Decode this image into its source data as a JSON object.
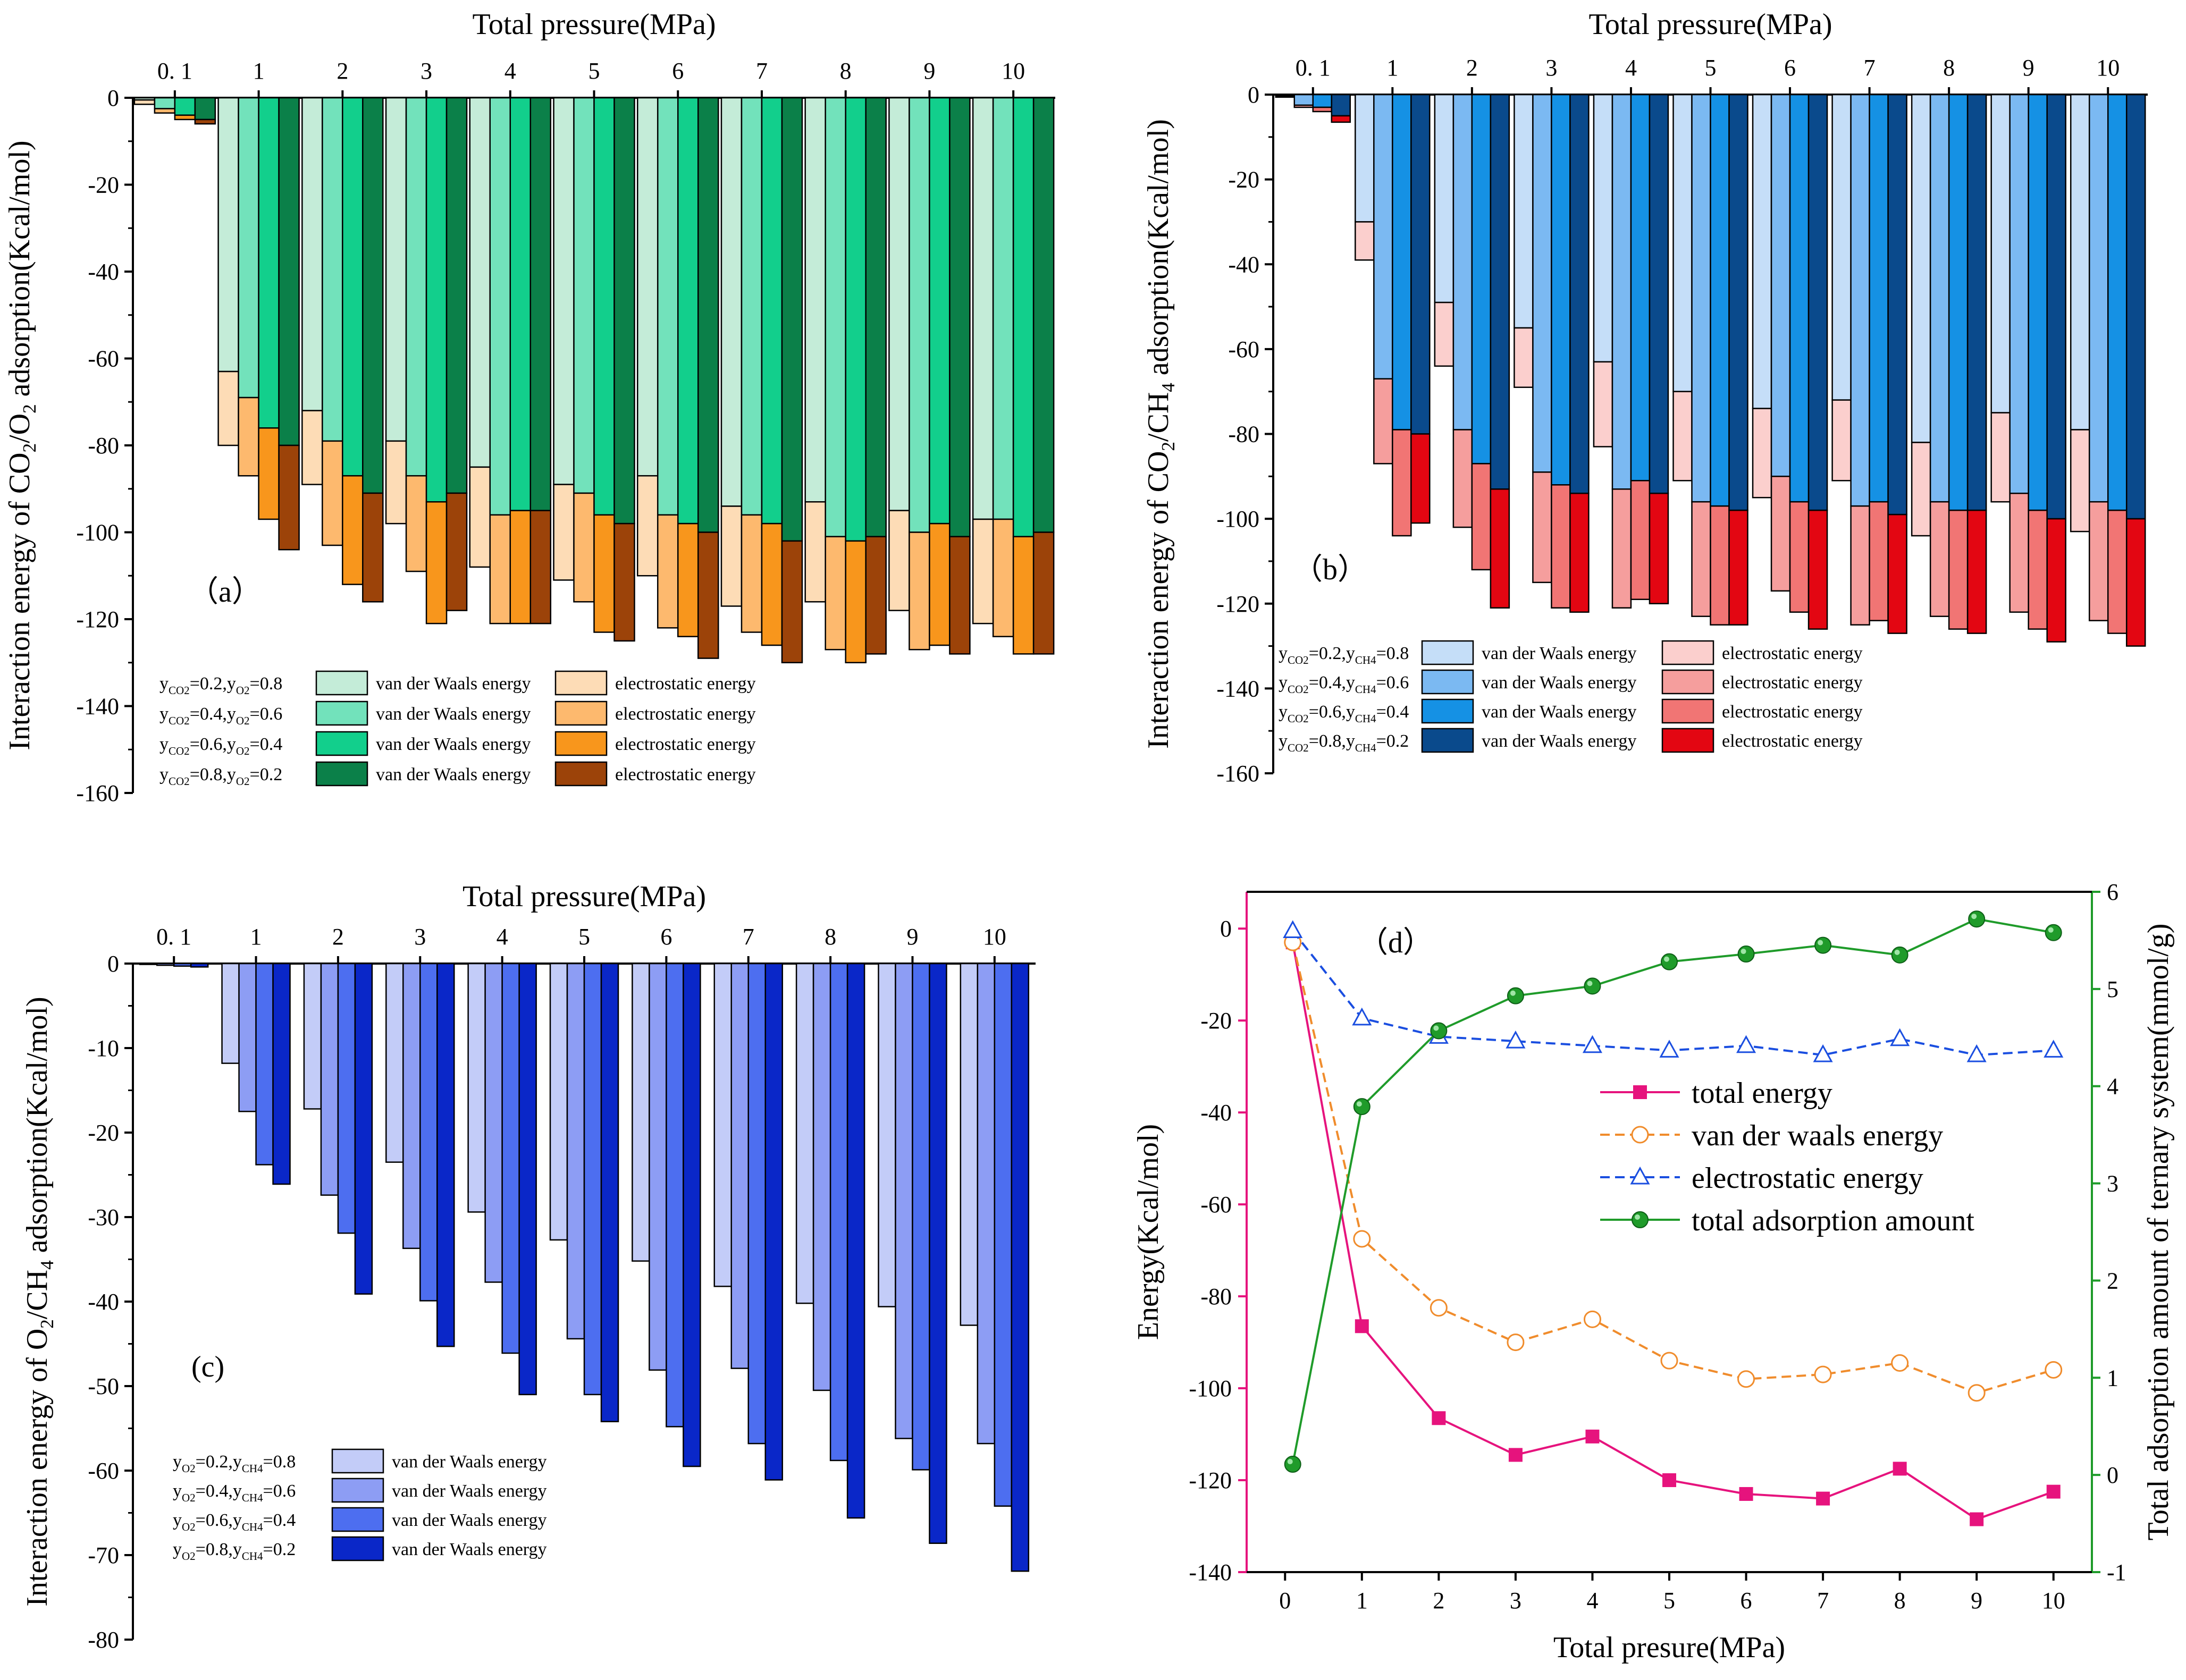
{
  "chart_data": [
    {
      "id": "a",
      "type": "bar",
      "panel_label": "（a）",
      "title": "Total pressure(MPa)",
      "ylabel_parts": [
        "Interaction energy of CO",
        "2",
        "/O",
        "2",
        " adsorption(Kcal/mol)"
      ],
      "categories": [
        "0. 1",
        "1",
        "2",
        "3",
        "4",
        "5",
        "6",
        "7",
        "8",
        "9",
        "10"
      ],
      "y_ticks": [
        0,
        -20,
        -40,
        -60,
        -80,
        -100,
        -120,
        -140,
        -160
      ],
      "ylim": [
        -160,
        0
      ],
      "series": [
        {
          "legend_parts": [
            "y",
            "CO2",
            "=0.2,y",
            "O2",
            "=0.8"
          ],
          "vdw_label": "van der Waals energy",
          "ele_label": "electrostatic energy",
          "vdw_color": "#c4ecd8",
          "ele_color": "#fddcb6",
          "vdw": [
            -0.5,
            -63,
            -72,
            -79,
            -85,
            -89,
            -87,
            -94,
            -93,
            -95,
            -97
          ],
          "total": [
            -1.5,
            -80,
            -89,
            -98,
            -108,
            -111,
            -110,
            -117,
            -116,
            -118,
            -121
          ]
        },
        {
          "legend_parts": [
            "y",
            "CO2",
            "=0.4,y",
            "O2",
            "=0.6"
          ],
          "vdw_label": "van der Waals energy",
          "ele_label": "electrostatic energy",
          "vdw_color": "#72e2bb",
          "ele_color": "#fdb96e",
          "vdw": [
            -2.5,
            -69,
            -79,
            -87,
            -96,
            -91,
            -96,
            -96,
            -101,
            -100,
            -97
          ],
          "total": [
            -3.5,
            -87,
            -103,
            -109,
            -121,
            -116,
            -122,
            -123,
            -127,
            -127,
            -124
          ]
        },
        {
          "legend_parts": [
            "y",
            "CO2",
            "=0.6,y",
            "O2",
            "=0.4"
          ],
          "vdw_label": "van der Waals energy",
          "ele_label": "electrostatic energy",
          "vdw_color": "#12cf8c",
          "ele_color": "#f8961c",
          "vdw": [
            -4,
            -76,
            -87,
            -93,
            -95,
            -96,
            -98,
            -98,
            -102,
            -98,
            -101
          ],
          "total": [
            -5,
            -97,
            -112,
            -121,
            -121,
            -123,
            -124,
            -126,
            -130,
            -126,
            -128
          ]
        },
        {
          "legend_parts": [
            "y",
            "CO2",
            "=0.8,y",
            "O2",
            "=0.2"
          ],
          "vdw_label": "van der Waals energy",
          "ele_label": "electrostatic energy",
          "vdw_color": "#0b8049",
          "ele_color": "#9c4309",
          "vdw": [
            -5,
            -80,
            -91,
            -91,
            -95,
            -98,
            -100,
            -102,
            -101,
            -101,
            -100
          ],
          "total": [
            -6,
            -104,
            -116,
            -118,
            -121,
            -125,
            -129,
            -130,
            -128,
            -128,
            -128
          ]
        }
      ]
    },
    {
      "id": "b",
      "type": "bar",
      "panel_label": "（b）",
      "title": "Total pressure(MPa)",
      "ylabel_parts": [
        "Interaction energy of CO",
        "2",
        "/CH",
        "4",
        " adsorption(Kcal/mol)"
      ],
      "categories": [
        "0. 1",
        "1",
        "2",
        "3",
        "4",
        "5",
        "6",
        "7",
        "8",
        "9",
        "10"
      ],
      "y_ticks": [
        0,
        -20,
        -40,
        -60,
        -80,
        -100,
        -120,
        -140,
        -160
      ],
      "ylim": [
        -160,
        0
      ],
      "series": [
        {
          "legend_parts": [
            "y",
            "CO2",
            "=0.2,y",
            "CH4",
            "=0.8"
          ],
          "vdw_label": "van der Waals energy",
          "ele_label": "electrostatic energy",
          "vdw_color": "#c5def8",
          "ele_color": "#fbcfcd",
          "vdw": [
            -0.3,
            -30,
            -49,
            -55,
            -63,
            -70,
            -74,
            -72,
            -82,
            -75,
            -79
          ],
          "total": [
            -0.6,
            -39,
            -64,
            -69,
            -83,
            -91,
            -95,
            -91,
            -104,
            -96,
            -103
          ]
        },
        {
          "legend_parts": [
            "y",
            "CO2",
            "=0.4,y",
            "CH4",
            "=0.6"
          ],
          "vdw_label": "van der Waals energy",
          "ele_label": "electrostatic energy",
          "vdw_color": "#7bb9f2",
          "ele_color": "#f59e9d",
          "vdw": [
            -2.5,
            -67,
            -79,
            -89,
            -93,
            -96,
            -90,
            -97,
            -96,
            -94,
            -96
          ],
          "total": [
            -3,
            -87,
            -102,
            -115,
            -121,
            -123,
            -117,
            -125,
            -123,
            -122,
            -124
          ]
        },
        {
          "legend_parts": [
            "y",
            "CO2",
            "=0.6,y",
            "CH4",
            "=0.4"
          ],
          "vdw_label": "van der Waals energy",
          "ele_label": "electrostatic energy",
          "vdw_color": "#1591e4",
          "ele_color": "#f17574",
          "vdw": [
            -3,
            -79,
            -87,
            -92,
            -91,
            -97,
            -96,
            -96,
            -98,
            -98,
            -98
          ],
          "total": [
            -4,
            -104,
            -112,
            -121,
            -119,
            -125,
            -122,
            -124,
            -126,
            -126,
            -127
          ]
        },
        {
          "legend_parts": [
            "y",
            "CO2",
            "=0.8,y",
            "CH4",
            "=0.2"
          ],
          "vdw_label": "van der Waals energy",
          "ele_label": "electrostatic energy",
          "vdw_color": "#0a4a8c",
          "ele_color": "#e30612",
          "vdw": [
            -5,
            -80,
            -93,
            -94,
            -94,
            -98,
            -98,
            -99,
            -98,
            -100,
            -100
          ],
          "total": [
            -6.5,
            -101,
            -121,
            -122,
            -120,
            -125,
            -126,
            -127,
            -127,
            -129,
            -130
          ]
        }
      ]
    },
    {
      "id": "c",
      "type": "bar",
      "panel_label": "(c)",
      "title": "Total pressure(MPa)",
      "ylabel_parts": [
        "Interaction energy of O",
        "2",
        "/CH",
        "4",
        " adsorption(Kcal/mol)"
      ],
      "categories": [
        "0. 1",
        "1",
        "2",
        "3",
        "4",
        "5",
        "6",
        "7",
        "8",
        "9",
        "10"
      ],
      "y_ticks": [
        0,
        -10,
        -20,
        -30,
        -40,
        -50,
        -60,
        -70,
        -80
      ],
      "ylim": [
        -80,
        0
      ],
      "series": [
        {
          "legend_parts": [
            "y",
            "O2",
            "=0.2,y",
            "CH4",
            "=0.8"
          ],
          "vdw_label": "van der Waals energy",
          "vdw_color": "#c3ccf8",
          "vdw": [
            -0.1,
            -11.8,
            -17.2,
            -23.5,
            -29.4,
            -32.7,
            -35.2,
            -38.2,
            -40.2,
            -40.6,
            -42.8
          ]
        },
        {
          "legend_parts": [
            "y",
            "O2",
            "=0.4,y",
            "CH4",
            "=0.6"
          ],
          "vdw_label": "van der Waals energy",
          "vdw_color": "#8d9df4",
          "vdw": [
            -0.2,
            -17.5,
            -27.4,
            -33.7,
            -37.7,
            -44.4,
            -48.1,
            -47.9,
            -50.5,
            -56.2,
            -56.8
          ]
        },
        {
          "legend_parts": [
            "y",
            "O2",
            "=0.6,y",
            "CH4",
            "=0.4"
          ],
          "vdw_label": "van der Waals energy",
          "vdw_color": "#4d6ef0",
          "vdw": [
            -0.3,
            -23.8,
            -31.9,
            -39.9,
            -46.1,
            -51.0,
            -54.8,
            -56.8,
            -58.8,
            -59.9,
            -64.2
          ]
        },
        {
          "legend_parts": [
            "y",
            "O2",
            "=0.8,y",
            "CH4",
            "=0.2"
          ],
          "vdw_label": "van der Waals energy",
          "vdw_color": "#0a27c8",
          "vdw": [
            -0.4,
            -26.1,
            -39.1,
            -45.3,
            -51.0,
            -54.2,
            -59.5,
            -61.1,
            -65.6,
            -68.6,
            -71.9
          ]
        }
      ]
    },
    {
      "id": "d",
      "type": "line",
      "panel_label": "（d）",
      "xlabel": "Total presure(MPa)",
      "ylabel": "Energy(Kcal/mol)",
      "y2label": "Total adsorption amount of ternary system(mmol/g)",
      "x": [
        0.1,
        1,
        2,
        3,
        4,
        5,
        6,
        7,
        8,
        9,
        10
      ],
      "x_ticks": [
        0,
        1,
        2,
        3,
        4,
        5,
        6,
        7,
        8,
        9,
        10
      ],
      "y_ticks": [
        0,
        -20,
        -40,
        -60,
        -80,
        -100,
        -120,
        -140
      ],
      "y2_ticks": [
        -1,
        0,
        1,
        2,
        3,
        4,
        5,
        6
      ],
      "xlim": [
        -0.5,
        10.5
      ],
      "ylim": [
        -140,
        8
      ],
      "y2lim": [
        -1,
        6
      ],
      "left_axis_color": "#e6137d",
      "right_axis_color": "#1f9b2a",
      "series": [
        {
          "name": "total energy",
          "axis": "left",
          "color": "#e6137d",
          "marker": "square",
          "dashed": false,
          "values": [
            -3,
            -86.5,
            -106.5,
            -114.5,
            -110.5,
            -120,
            -123,
            -124,
            -117.5,
            -128.5,
            -122.5
          ]
        },
        {
          "name": "van der waals energy",
          "axis": "left",
          "color": "#f08c2c",
          "marker": "circle-open",
          "dashed": true,
          "values": [
            -3,
            -67.5,
            -82.5,
            -90,
            -85,
            -94,
            -98,
            -97,
            -94.5,
            -101,
            -96
          ]
        },
        {
          "name": "electrostatic energy",
          "axis": "left",
          "color": "#1a4ee0",
          "marker": "triangle-open",
          "dashed": true,
          "values": [
            -0.5,
            -19.5,
            -23.5,
            -24.5,
            -25.5,
            -26.5,
            -25.5,
            -27.5,
            -24,
            -27.5,
            -26.5
          ]
        },
        {
          "name": "total adsorption amount",
          "axis": "right",
          "color": "#1f9b2a",
          "marker": "circle-filled",
          "dashed": false,
          "values": [
            0.11,
            3.79,
            4.57,
            4.93,
            5.03,
            5.28,
            5.36,
            5.45,
            5.35,
            5.72,
            5.58
          ]
        }
      ]
    }
  ]
}
